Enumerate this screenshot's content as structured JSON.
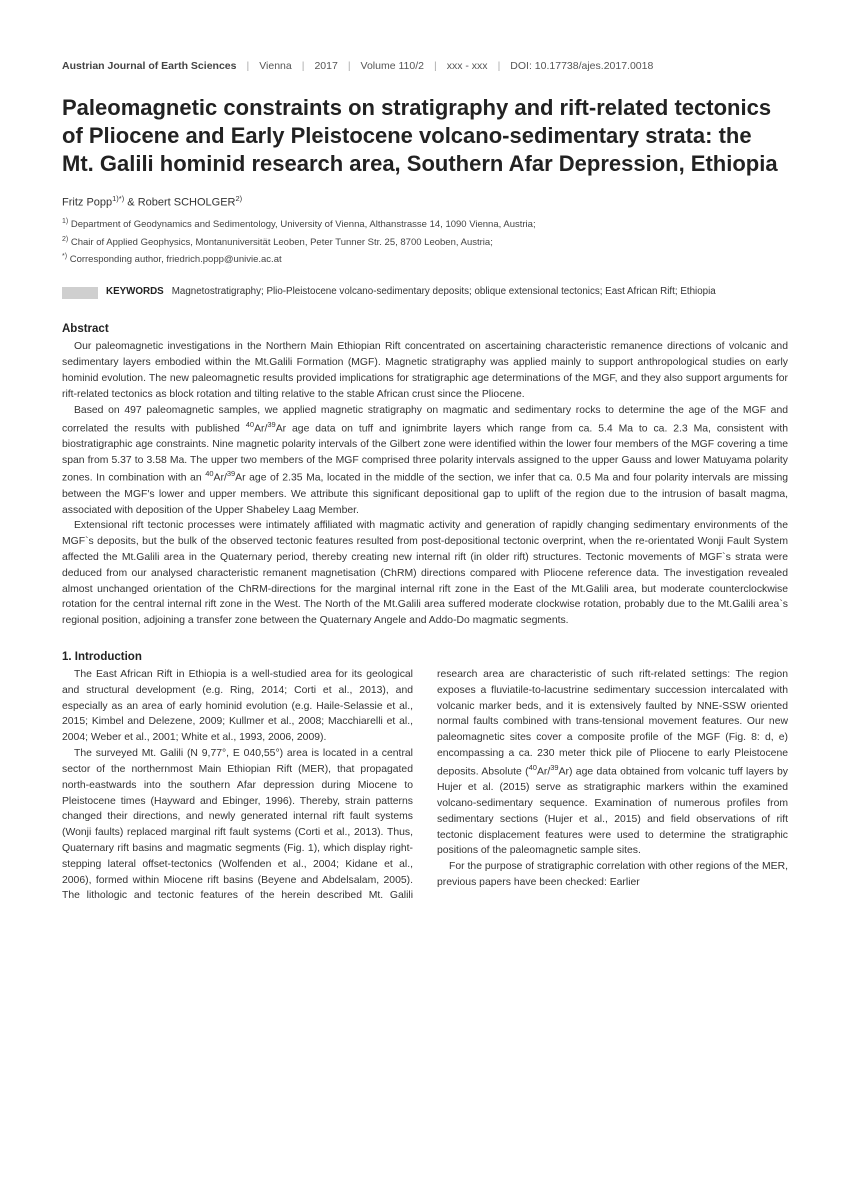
{
  "header": {
    "journal": "Austrian Journal of Earth Sciences",
    "city": "Vienna",
    "year": "2017",
    "volume": "Volume 110/2",
    "pages": "xxx - xxx",
    "doi": "DOI: 10.17738/ajes.2017.0018"
  },
  "title": "Paleomagnetic constraints on stratigraphy and rift-related tectonics of Pliocene and Early Pleistocene volcano-sedimentary strata: the Mt. Galili hominid research area, Southern Afar Depression, Ethiopia",
  "authors": {
    "a1_name": "Fritz Popp",
    "a1_sup": "1)*)",
    "amp": " & ",
    "a2_name": "Robert SCHOLGER",
    "a2_sup": "2)"
  },
  "affiliations": {
    "l1_sup": "1)",
    "l1": " Department of Geodynamics and Sedimentology, University of Vienna, Althanstrasse 14, 1090 Vienna, Austria;",
    "l2_sup": "2)",
    "l2": " Chair of Applied Geophysics, Montanuniversität Leoben, Peter Tunner Str. 25, 8700 Leoben, Austria;",
    "l3_sup": "*)",
    "l3": " Corresponding author, friedrich.popp@univie.ac.at"
  },
  "keywords": {
    "label": "KEYWORDS",
    "text": "Magnetostratigraphy; Plio-Pleistocene volcano-sedimentary deposits; oblique extensional tectonics; East African Rift; Ethiopia"
  },
  "abstract": {
    "head": "Abstract",
    "p1": "Our paleomagnetic investigations in the Northern Main Ethiopian Rift concentrated on ascertaining characteristic remanence directions of volcanic and sedimentary layers embodied within the Mt.Galili Formation (MGF). Magnetic stratigraphy was applied mainly to support anthropological studies on early hominid evolution. The new paleomagnetic results provided implications for stratigraphic age determinations of the MGF, and they also support arguments for rift-related tectonics as block rotation and tilting relative to the stable African crust since the Pliocene.",
    "p2a": "Based on 497 paleomagnetic samples, we applied magnetic stratigraphy on magmatic and sedimentary rocks to determine the age of the MGF and correlated the results with published ",
    "p2b": "Ar age data on tuff and ignimbrite layers which range from ca. 5.4 Ma to ca. 2.3 Ma, consistent with biostratigraphic age constraints. Nine magnetic polarity intervals of the Gilbert zone were identified within the lower four members of the MGF covering a time span from 5.37 to 3.58 Ma. The upper two members of the MGF comprised three polarity intervals assigned to the upper Gauss and lower Matuyama polarity zones. In combination with an ",
    "p2c": "Ar age of 2.35 Ma, located in the middle of the section, we infer that ca. 0.5 Ma and four polarity intervals are missing between the MGF's lower and upper members. We attribute this significant depositional gap to uplift of the region due to the intrusion of basalt magma, associated with deposition of the Upper Shabeley Laag Member.",
    "p3": "Extensional rift tectonic processes were intimately affiliated with magmatic activity and generation of rapidly changing sedimentary environments of the MGF`s deposits, but the bulk of the observed tectonic features resulted from post-depositional tectonic overprint, when the re-orientated Wonji Fault System affected the Mt.Galili area in the Quaternary period, thereby creating new internal rift (in older rift) structures. Tectonic movements of MGF`s strata were deduced from our analysed characteristic remanent magnetisation (ChRM) directions compared with Pliocene reference data. The investigation revealed almost unchanged orientation of the ChRM-directions for the marginal internal rift zone in the East of the Mt.Galili area, but moderate counterclockwise rotation for the central internal rift zone in the West. The North of the Mt.Galili area suffered moderate clockwise rotation, probably due to the Mt.Galili area`s regional position, adjoining a transfer zone between the Quaternary Angele and Addo-Do magmatic segments."
  },
  "intro": {
    "head": "1. Introduction",
    "p1": "The East African Rift in Ethiopia is a well-studied area for its geological and structural development (e.g. Ring, 2014; Corti et al., 2013), and especially as an area of early hominid evolution (e.g. Haile-Selassie et al., 2015; Kimbel and Delezene, 2009; Kullmer et al., 2008; Macchiarelli et al., 2004; Weber et al., 2001; White et al., 1993, 2006, 2009).",
    "p2a": "The surveyed Mt. Galili (N 9,77°, E 040,55°) area is located in a central sector of the northernmost Main Ethiopian Rift (MER), that propagated north-eastwards into the southern Afar depression during Miocene to Pleistocene times (Hayward and Ebinger, 1996). Thereby, strain patterns changed their directions, and newly generated internal rift fault systems (Wonji faults) replaced marginal rift fault systems (Corti et al., 2013). Thus, Quaternary rift basins and magmatic segments (Fig. 1), which display right-stepping lateral offset-tectonics (Wolfenden et al., 2004; Kidane et al., 2006), formed within Miocene rift basins (Beyene and Abdelsalam, 2005). The lithologic and tectonic features of the herein described Mt. Galili research area are characteristic of such rift-related settings: The region exposes a fluviatile-to-lacustrine sedimentary succession intercalated with volcanic marker beds, and it is extensively faulted by NNE-SSW oriented normal faults combined with trans-tensional movement features. Our new paleomagnetic sites cover a composite profile of the MGF (Fig. 8: d, e) encompassing a ca. 230 meter thick pile of Pliocene to early Pleistocene deposits. Absolute (",
    "p2b": "Ar) age data obtained from volcanic tuff layers by Hujer et al. (2015) serve as stratigraphic markers within the examined volcano-sedimentary sequence. Examination of numerous profiles from sedimentary sections (Hujer et al., 2015) and field observations of rift tectonic displacement features were used to determine the stratigraphic positions of the paleomagnetic sample sites.",
    "p3": "For the purpose of stratigraphic correlation with other regions of the MER, previous papers have been checked: Earlier"
  },
  "iso": {
    "ar40": "40",
    "ar39": "39",
    "slash": "Ar/"
  }
}
